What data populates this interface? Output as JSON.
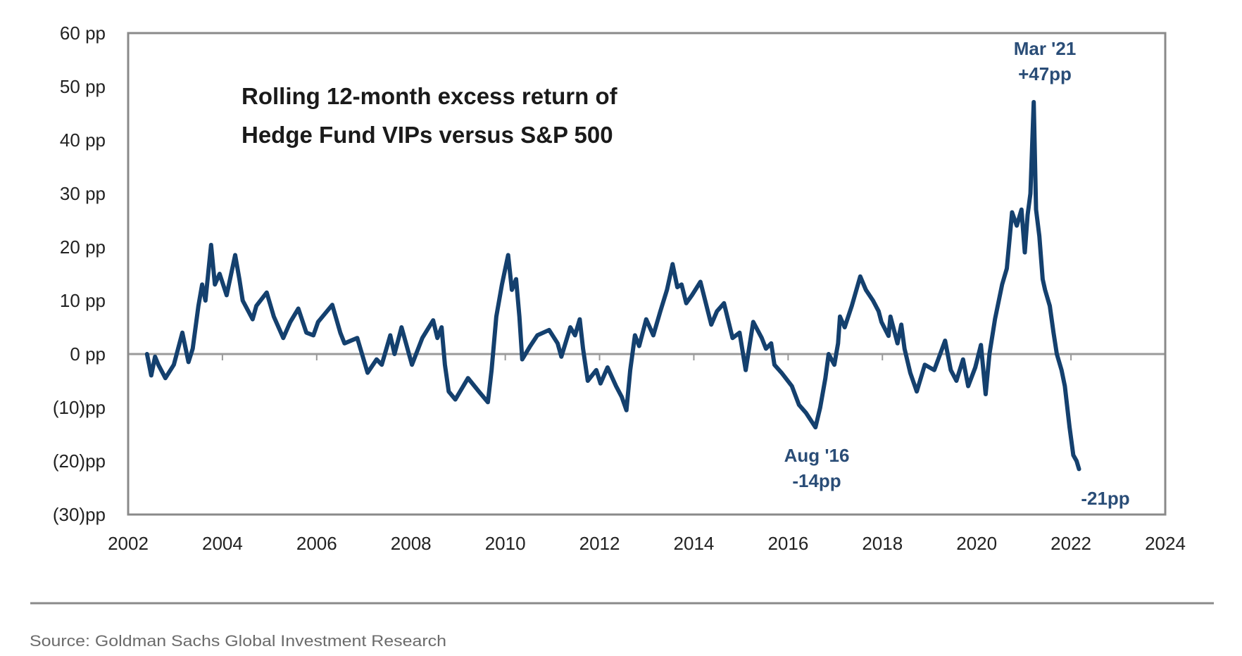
{
  "chart_data": {
    "type": "line",
    "title": [
      "Rolling 12-month excess return of",
      "Hedge Fund VIPs versus S&P 500"
    ],
    "xlabel": "",
    "ylabel": "",
    "xlim": [
      2002,
      2024
    ],
    "ylim": [
      -30,
      60
    ],
    "x_ticks": [
      2002,
      2004,
      2006,
      2008,
      2010,
      2012,
      2014,
      2016,
      2018,
      2020,
      2022,
      2024
    ],
    "x_tick_labels": [
      "2002",
      "2004",
      "2006",
      "2008",
      "2010",
      "2012",
      "2014",
      "2016",
      "2018",
      "2020",
      "2022",
      "2024"
    ],
    "y_ticks": [
      60,
      50,
      40,
      30,
      20,
      10,
      0,
      -10,
      -20,
      -30
    ],
    "y_tick_labels": [
      "60 pp",
      "50 pp",
      "40 pp",
      "30 pp",
      "20 pp",
      "10 pp",
      "0 pp",
      "(10)pp",
      "(20)pp",
      "(30)pp"
    ],
    "grid": false,
    "zero_line": true,
    "legend": "none",
    "series": [
      {
        "name": "Rolling 12-month excess return of Hedge Fund VIPs versus S&P 500",
        "color": "#14406e",
        "x": [
          2002.4,
          2002.49,
          2002.57,
          2002.64,
          2002.79,
          2002.97,
          2003.15,
          2003.28,
          2003.37,
          2003.49,
          2003.57,
          2003.64,
          2003.76,
          2003.84,
          2003.94,
          2004.09,
          2004.27,
          2004.36,
          2004.43,
          2004.64,
          2004.72,
          2004.94,
          2005.09,
          2005.29,
          2005.44,
          2005.61,
          2005.78,
          2005.93,
          2006.03,
          2006.33,
          2006.5,
          2006.59,
          2006.86,
          2007.08,
          2007.27,
          2007.38,
          2007.56,
          2007.65,
          2007.8,
          2008.02,
          2008.24,
          2008.47,
          2008.56,
          2008.65,
          2008.72,
          2008.8,
          2008.94,
          2009.21,
          2009.44,
          2009.63,
          2009.71,
          2009.81,
          2009.93,
          2010.06,
          2010.14,
          2010.23,
          2010.3,
          2010.36,
          2010.53,
          2010.68,
          2010.93,
          2011.11,
          2011.19,
          2011.38,
          2011.48,
          2011.58,
          2011.65,
          2011.75,
          2011.93,
          2012.02,
          2012.17,
          2012.35,
          2012.47,
          2012.57,
          2012.65,
          2012.75,
          2012.84,
          2012.99,
          2013.14,
          2013.29,
          2013.43,
          2013.55,
          2013.65,
          2013.74,
          2013.84,
          2013.96,
          2014.14,
          2014.37,
          2014.49,
          2014.64,
          2014.82,
          2014.97,
          2015.1,
          2015.26,
          2015.44,
          2015.53,
          2015.64,
          2015.71,
          2015.86,
          2016.08,
          2016.23,
          2016.38,
          2016.58,
          2016.68,
          2016.79,
          2016.86,
          2016.98,
          2017.06,
          2017.1,
          2017.2,
          2017.35,
          2017.53,
          2017.65,
          2017.8,
          2017.92,
          2017.98,
          2018.13,
          2018.17,
          2018.32,
          2018.4,
          2018.47,
          2018.59,
          2018.73,
          2018.9,
          2019.1,
          2019.33,
          2019.45,
          2019.57,
          2019.71,
          2019.82,
          2019.97,
          2020.09,
          2020.19,
          2020.27,
          2020.39,
          2020.54,
          2020.64,
          2020.75,
          2020.85,
          2020.95,
          2021.02,
          2021.08,
          2021.14,
          2021.21,
          2021.26,
          2021.33,
          2021.4,
          2021.45,
          2021.55,
          2021.63,
          2021.7,
          2021.8,
          2021.87,
          2021.97,
          2022.05,
          2022.12,
          2022.17
        ],
        "y": [
          0,
          -4,
          -0.5,
          -2,
          -4.5,
          -2,
          4,
          -1.5,
          1,
          9,
          13,
          10,
          20.4,
          13,
          15,
          11,
          18.5,
          14,
          10,
          6.5,
          9,
          11.5,
          7,
          3,
          6,
          8.5,
          4,
          3.5,
          6,
          9.2,
          4,
          2,
          3,
          -3.5,
          -1,
          -2,
          3.5,
          0,
          5,
          -2,
          3,
          6.3,
          3,
          5,
          -2,
          -7,
          -8.5,
          -4.5,
          -7,
          -9,
          -3,
          7,
          13,
          18.5,
          12,
          14,
          7,
          -1,
          1.5,
          3.5,
          4.5,
          2,
          -0.5,
          5,
          3.5,
          6.5,
          1,
          -5,
          -3,
          -5.5,
          -2.5,
          -6,
          -8,
          -10.5,
          -3,
          3.5,
          1.5,
          6.5,
          3.5,
          8,
          12,
          16.8,
          12.5,
          13,
          9.5,
          11,
          13.5,
          5.5,
          8,
          9.5,
          3,
          4,
          -3,
          6,
          3,
          1,
          2,
          -2,
          -3.5,
          -6,
          -9.5,
          -11,
          -13.7,
          -10,
          -4.5,
          0,
          -2,
          2,
          7,
          5,
          9,
          14.5,
          12,
          10,
          8,
          6,
          3.4,
          7,
          2,
          5.5,
          1,
          -3.5,
          -7,
          -2,
          -3,
          2.5,
          -3,
          -5,
          -1,
          -6,
          -2.5,
          1.7,
          -7.5,
          0,
          6.6,
          13,
          16,
          26.5,
          24,
          27,
          19,
          26,
          30,
          47.1,
          27,
          22,
          14,
          12,
          9,
          4,
          0,
          -3,
          -6,
          -13.7,
          -18.9,
          -20,
          -21.5
        ]
      }
    ],
    "annotations": [
      {
        "lines": [
          "Mar '21",
          "+47pp"
        ],
        "x": 2021.21,
        "y": 47
      },
      {
        "lines": [
          "Aug '16",
          "-14pp"
        ],
        "x": 2016.62,
        "y": -14
      },
      {
        "lines": [
          "-21pp"
        ],
        "x": 2022.17,
        "y": -21
      }
    ],
    "source": "Source: Goldman Sachs Global Investment Research"
  }
}
